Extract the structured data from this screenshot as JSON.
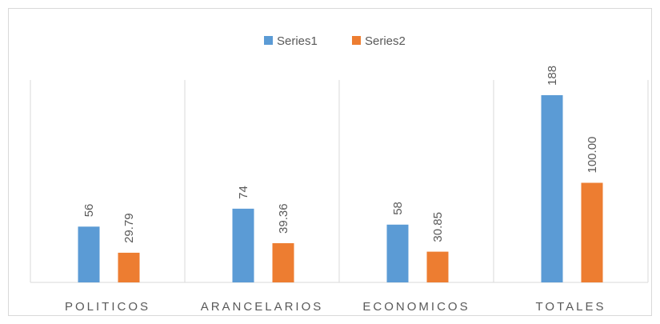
{
  "chart_data": {
    "type": "bar",
    "categories": [
      "POLITICOS",
      "ARANCELARIOS",
      "ECONOMICOS",
      "TOTALES"
    ],
    "series": [
      {
        "name": "Series1",
        "color": "#5b9bd5",
        "values": [
          56,
          74,
          58,
          188
        ]
      },
      {
        "name": "Series2",
        "color": "#ed7d31",
        "values": [
          29.79,
          39.36,
          30.85,
          100
        ],
        "value_labels": [
          "29.79",
          "39.36",
          "30.85",
          "100.00"
        ]
      }
    ],
    "legend": "top"
  }
}
